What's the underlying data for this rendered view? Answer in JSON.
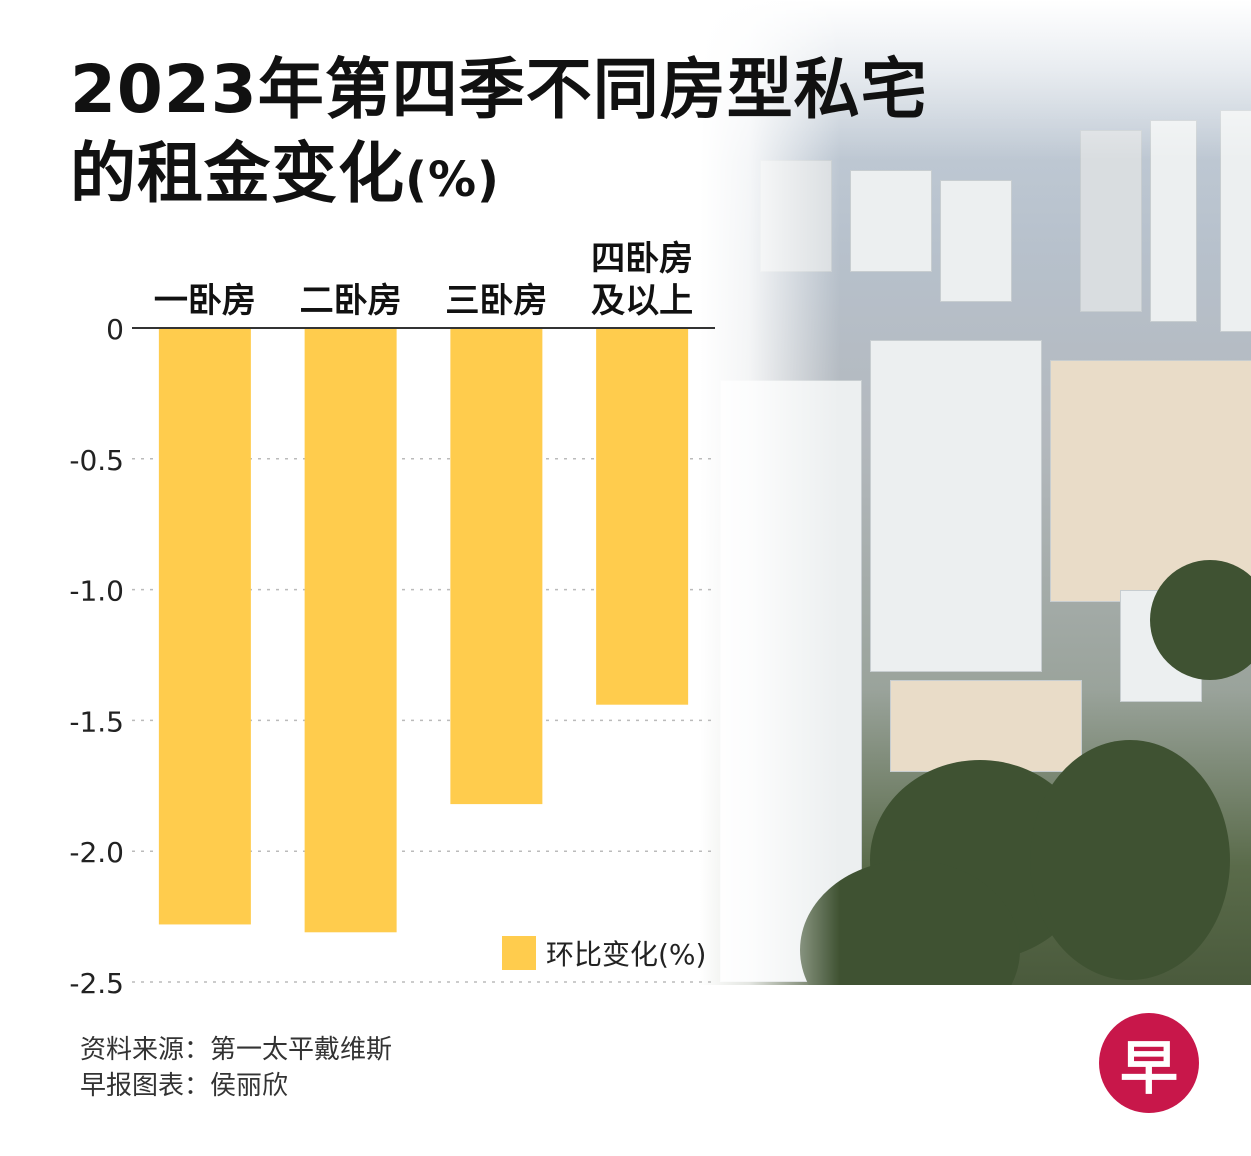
{
  "title_line1": "2023年第四季不同房型私宅",
  "title_line2": "的租金变化",
  "title_unit": "(%)",
  "legend_label": "环比变化(%)",
  "source_line1": "资料来源：第一太平戴维斯",
  "source_line2": "早报图表：侯丽欣",
  "logo_char": "早",
  "colors": {
    "bar": "#FFCC4D",
    "axis": "#333333",
    "grid": "#bbbbbb"
  },
  "chart_data": {
    "type": "bar",
    "categories": [
      "一卧房",
      "二卧房",
      "三卧房",
      "四卧房\n及以上"
    ],
    "series": [
      {
        "name": "环比变化(%)",
        "values": [
          -2.28,
          -2.31,
          -1.82,
          -1.44
        ]
      }
    ],
    "ylim": [
      -2.5,
      0
    ],
    "yticks": [
      0,
      -0.5,
      -1.0,
      -1.5,
      -2.0,
      -2.5
    ],
    "ytick_labels": [
      "0",
      "-0.5",
      "-1.0",
      "-1.5",
      "-2.0",
      "-2.5"
    ],
    "grid": true,
    "legend_position": "bottom-right"
  }
}
